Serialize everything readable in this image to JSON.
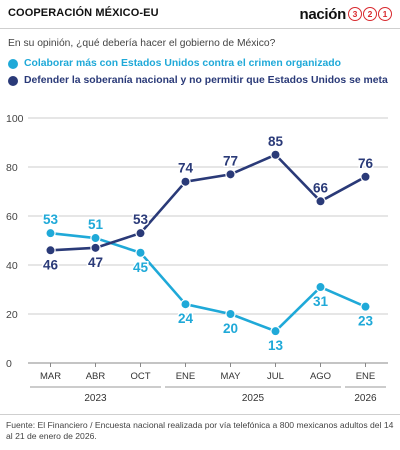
{
  "header": {
    "title": "COOPERACIÓN MÉXICO-EU",
    "brand_text": "nación",
    "brand_digits": [
      "3",
      "2",
      "1"
    ]
  },
  "question": "En su opinión, ¿qué debería hacer el gobierno de México?",
  "colors": {
    "light_blue": "#1fa9d8",
    "dark_blue": "#2a3a78",
    "brand_red": "#d8282d",
    "grid": "#cccccc"
  },
  "chart_data": {
    "type": "line",
    "title": "",
    "xlabel": "",
    "ylabel": "",
    "ylim": [
      0,
      100
    ],
    "yticks": [
      0,
      20,
      40,
      60,
      80,
      100
    ],
    "grid": true,
    "legend_position": "top",
    "categories": [
      "MAR",
      "ABR",
      "OCT",
      "ENE",
      "MAY",
      "JUL",
      "AGO",
      "ENE"
    ],
    "year_groups": [
      {
        "label": "2023",
        "from": 0,
        "to": 2
      },
      {
        "label": "2025",
        "from": 3,
        "to": 6
      },
      {
        "label": "2026",
        "from": 7,
        "to": 7
      }
    ],
    "series": [
      {
        "name": "Colaborar más con Estados Unidos contra el crimen organizado",
        "color": "#1fa9d8",
        "values": [
          53,
          51,
          45,
          24,
          20,
          13,
          31,
          23
        ],
        "label_pos": [
          "above",
          "above",
          "below",
          "below",
          "below",
          "below",
          "below",
          "below"
        ]
      },
      {
        "name": "Defender la soberanía nacional y no permitir que Estados Unidos se meta",
        "color": "#2a3a78",
        "values": [
          46,
          47,
          53,
          74,
          77,
          85,
          66,
          76
        ],
        "label_pos": [
          "below",
          "below",
          "above",
          "above",
          "above",
          "above",
          "above",
          "above"
        ]
      }
    ]
  },
  "source": "Fuente: El Financiero / Encuesta nacional realizada por vía telefónica a 800 mexicanos adultos del 14 al 21 de enero de 2026."
}
